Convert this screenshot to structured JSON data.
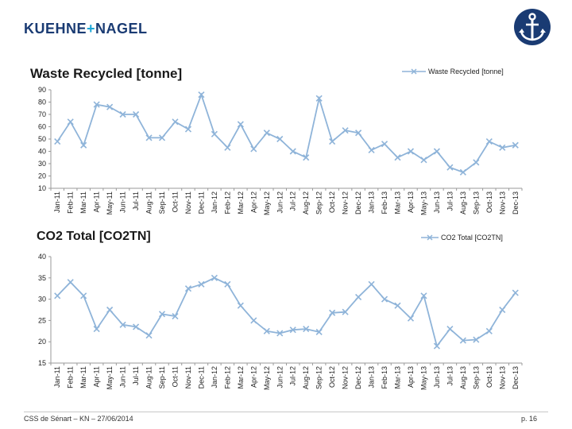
{
  "brand": {
    "left": "KUEHNE",
    "sep": "+",
    "right": "NAGEL"
  },
  "colors": {
    "series": "#8fb4d9",
    "brand": "#1a3b73",
    "accent": "#1aa7d8"
  },
  "footer": {
    "left": "CSS de Sénart – KN – 27/06/2014",
    "page": "p. 16"
  },
  "chart_data": [
    {
      "type": "line",
      "title": "Waste Recycled [tonne]",
      "legend": "Waste Recycled [tonne]",
      "ylim": [
        10,
        90
      ],
      "yticks": [
        "10",
        "20",
        "30",
        "40",
        "50",
        "60",
        "70",
        "80",
        "90"
      ],
      "categories": [
        "Jan-11",
        "Feb-11",
        "Mar-11",
        "Apr-11",
        "May-11",
        "Jun-11",
        "Jul-11",
        "Aug-11",
        "Sep-11",
        "Oct-11",
        "Nov-11",
        "Dec-11",
        "Jan-12",
        "Feb-12",
        "Mar-12",
        "Apr-12",
        "May-12",
        "Jun-12",
        "Jul-12",
        "Aug-12",
        "Sep-12",
        "Oct-12",
        "Nov-12",
        "Dec-12",
        "Jan-13",
        "Feb-13",
        "Mar-13",
        "Apr-13",
        "May-13",
        "Jun-13",
        "Jul-13",
        "Aug-13",
        "Sep-13",
        "Oct-13",
        "Nov-13",
        "Dec-13"
      ],
      "values": [
        48,
        64,
        45,
        78,
        76,
        70,
        70,
        51,
        51,
        64,
        58,
        86,
        54,
        43,
        62,
        42,
        55,
        50,
        40,
        35,
        83,
        48,
        57,
        55,
        41,
        46,
        35,
        40,
        33,
        40,
        27,
        23,
        31,
        48,
        43,
        45
      ]
    },
    {
      "type": "line",
      "title": "CO2 Total [CO2TN]",
      "legend": "CO2 Total [CO2TN]",
      "ylim": [
        15,
        40
      ],
      "yticks": [
        "15",
        "20",
        "25",
        "30",
        "35",
        "40"
      ],
      "categories": [
        "Jan-11",
        "Feb-11",
        "Mar-11",
        "Apr-11",
        "May-11",
        "Jun-11",
        "Jul-11",
        "Aug-11",
        "Sep-11",
        "Oct-11",
        "Nov-11",
        "Dec-11",
        "Jan-12",
        "Feb-12",
        "Mar-12",
        "Apr-12",
        "May-12",
        "Jun-12",
        "Jul-12",
        "Aug-12",
        "Sep-12",
        "Oct-12",
        "Nov-12",
        "Dec-12",
        "Jan-13",
        "Feb-13",
        "Mar-13",
        "Apr-13",
        "May-13",
        "Jun-13",
        "Jul-13",
        "Aug-13",
        "Sep-13",
        "Oct-13",
        "Nov-13",
        "Dec-13"
      ],
      "values": [
        30.8,
        34,
        30.8,
        23,
        27.5,
        24,
        23.5,
        21.5,
        26.5,
        26,
        32.5,
        33.5,
        35,
        33.5,
        28.5,
        25,
        22.5,
        22,
        22.8,
        23,
        22.3,
        26.8,
        27,
        30.5,
        33.5,
        30,
        28.5,
        25.5,
        30.8,
        19,
        23,
        20.3,
        20.5,
        22.5,
        27.5,
        31.5
      ]
    }
  ]
}
